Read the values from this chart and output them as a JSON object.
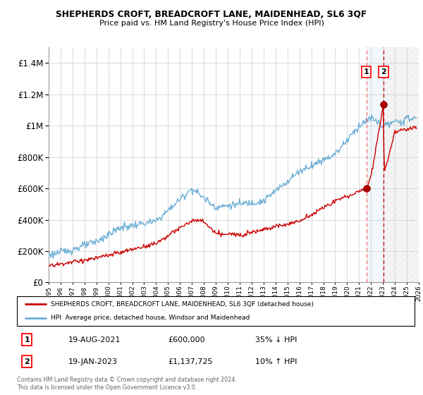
{
  "title": "SHEPHERDS CROFT, BREADCROFT LANE, MAIDENHEAD, SL6 3QF",
  "subtitle": "Price paid vs. HM Land Registry's House Price Index (HPI)",
  "legend_line1": "SHEPHERDS CROFT, BREADCROFT LANE, MAIDENHEAD, SL6 3QF (detached house)",
  "legend_line2": "HPI: Average price, detached house, Windsor and Maidenhead",
  "annotation1_label": "1",
  "annotation1_date": "19-AUG-2021",
  "annotation1_price": "£600,000",
  "annotation1_hpi": "35% ↓ HPI",
  "annotation2_label": "2",
  "annotation2_date": "19-JAN-2023",
  "annotation2_price": "£1,137,725",
  "annotation2_hpi": "10% ↑ HPI",
  "footer": "Contains HM Land Registry data © Crown copyright and database right 2024.\nThis data is licensed under the Open Government Licence v3.0.",
  "hpi_color": "#6baed6",
  "price_color": "#cc0000",
  "marker1_x": 2021.62,
  "marker2_x": 2023.05,
  "marker1_y": 600000,
  "marker2_y": 1137725,
  "ylim": [
    0,
    1500000
  ],
  "xlim_start": 1995,
  "xlim_end": 2026,
  "hpi_anchors_x": [
    1995,
    1997,
    1999,
    2001,
    2004,
    2007,
    2009,
    2013,
    2016,
    2019,
    2021,
    2022,
    2023,
    2024,
    2025.5
  ],
  "hpi_anchors_y": [
    175000,
    210000,
    260000,
    350000,
    390000,
    600000,
    480000,
    520000,
    710000,
    820000,
    1000000,
    1050000,
    1000000,
    1020000,
    1050000
  ],
  "price_anchors_x": [
    1995,
    1997,
    1999,
    2001,
    2004,
    2007,
    2008,
    2009,
    2011,
    2013,
    2016,
    2019,
    2021.0,
    2021.62,
    2022.0,
    2023.05,
    2023.1,
    2024,
    2025.5
  ],
  "price_anchors_y": [
    105000,
    130000,
    155000,
    190000,
    250000,
    395000,
    390000,
    310000,
    305000,
    340000,
    390000,
    520000,
    580000,
    600000,
    680000,
    1137725,
    700000,
    960000,
    990000
  ]
}
